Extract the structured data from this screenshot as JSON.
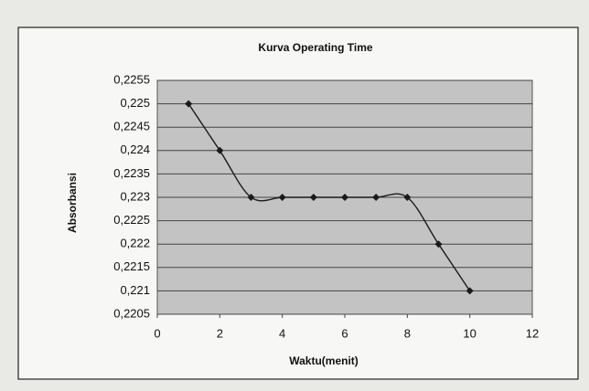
{
  "chart_data": {
    "type": "line",
    "title": "Kurva Operating Time",
    "x_label": "Waktu(menit)",
    "y_label": "Absorbansi",
    "x": [
      1,
      2,
      3,
      4,
      5,
      6,
      7,
      8,
      9,
      10
    ],
    "values": [
      0.225,
      0.224,
      0.223,
      0.223,
      0.223,
      0.223,
      0.223,
      0.223,
      0.222,
      0.221
    ],
    "color": "#1a1a1a",
    "smooth": true,
    "markers": true,
    "plot_background": "#c3c3c3",
    "grid": true,
    "xlim": [
      0,
      12
    ],
    "xticks": [
      0,
      2,
      4,
      6,
      8,
      10,
      12
    ],
    "ylim": [
      0.2205,
      0.2255
    ],
    "yticks": [
      {
        "value": 0.2205,
        "label": "0,2205"
      },
      {
        "value": 0.221,
        "label": "0,221"
      },
      {
        "value": 0.2215,
        "label": "0,2215"
      },
      {
        "value": 0.222,
        "label": "0,222"
      },
      {
        "value": 0.2225,
        "label": "0,2225"
      },
      {
        "value": 0.223,
        "label": "0,223"
      },
      {
        "value": 0.2235,
        "label": "0,2235"
      },
      {
        "value": 0.224,
        "label": "0,224"
      },
      {
        "value": 0.2245,
        "label": "0,2245"
      },
      {
        "value": 0.225,
        "label": "0,225"
      },
      {
        "value": 0.2255,
        "label": "0,2255"
      }
    ]
  }
}
